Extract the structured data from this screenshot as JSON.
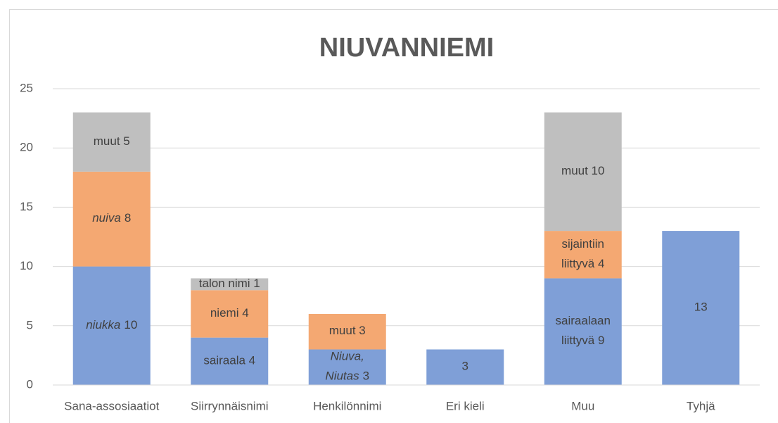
{
  "chart_data": {
    "type": "stacked_bar",
    "title": "NIUVANNIEMI",
    "categories": [
      "Sana-assosiaatiot",
      "Siirrynnäisnimi",
      "Henkilönnimi",
      "Eri kieli",
      "Muu",
      "Tyhjä"
    ],
    "ylim": [
      0,
      25
    ],
    "yticks": [
      0,
      5,
      10,
      15,
      20,
      25
    ],
    "grid": true,
    "legend": false,
    "series": [
      {
        "color": "#7f9fd7",
        "values": [
          10,
          4,
          3,
          3,
          9,
          13
        ],
        "value_labels": [
          [
            [
              {
                "text": "niukka",
                "italic": true
              },
              {
                "text": "10",
                "italic": false
              }
            ]
          ],
          [
            [
              {
                "text": "sairaala 4",
                "italic": false
              }
            ]
          ],
          [
            [
              {
                "text": "Niuva,",
                "italic": true
              }
            ],
            [
              {
                "text": "Niutas",
                "italic": true
              },
              {
                "text": "3",
                "italic": false
              }
            ]
          ],
          [
            [
              {
                "text": "3",
                "italic": false
              }
            ]
          ],
          [
            [
              {
                "text": "sairaalaan",
                "italic": false
              }
            ],
            [
              {
                "text": "liittyvä 9",
                "italic": false
              }
            ]
          ],
          [
            [
              {
                "text": "13",
                "italic": false
              }
            ]
          ]
        ]
      },
      {
        "color": "#f4a872",
        "values": [
          8,
          4,
          3,
          null,
          4,
          null
        ],
        "value_labels": [
          [
            [
              {
                "text": "nuiva",
                "italic": true
              },
              {
                "text": "8",
                "italic": false
              }
            ]
          ],
          [
            [
              {
                "text": "niemi 4",
                "italic": false
              }
            ]
          ],
          [
            [
              {
                "text": "muut 3",
                "italic": false
              }
            ]
          ],
          null,
          [
            [
              {
                "text": "sijaintiin",
                "italic": false
              }
            ],
            [
              {
                "text": "liittyvä 4",
                "italic": false
              }
            ]
          ],
          null
        ]
      },
      {
        "color": "#bfbfbf",
        "values": [
          5,
          1,
          null,
          null,
          10,
          null
        ],
        "value_labels": [
          [
            [
              {
                "text": "muut 5",
                "italic": false
              }
            ]
          ],
          [
            [
              {
                "text": "talon nimi 1",
                "italic": false
              }
            ]
          ],
          null,
          null,
          [
            [
              {
                "text": "muut 10",
                "italic": false
              }
            ]
          ],
          null
        ]
      }
    ]
  }
}
